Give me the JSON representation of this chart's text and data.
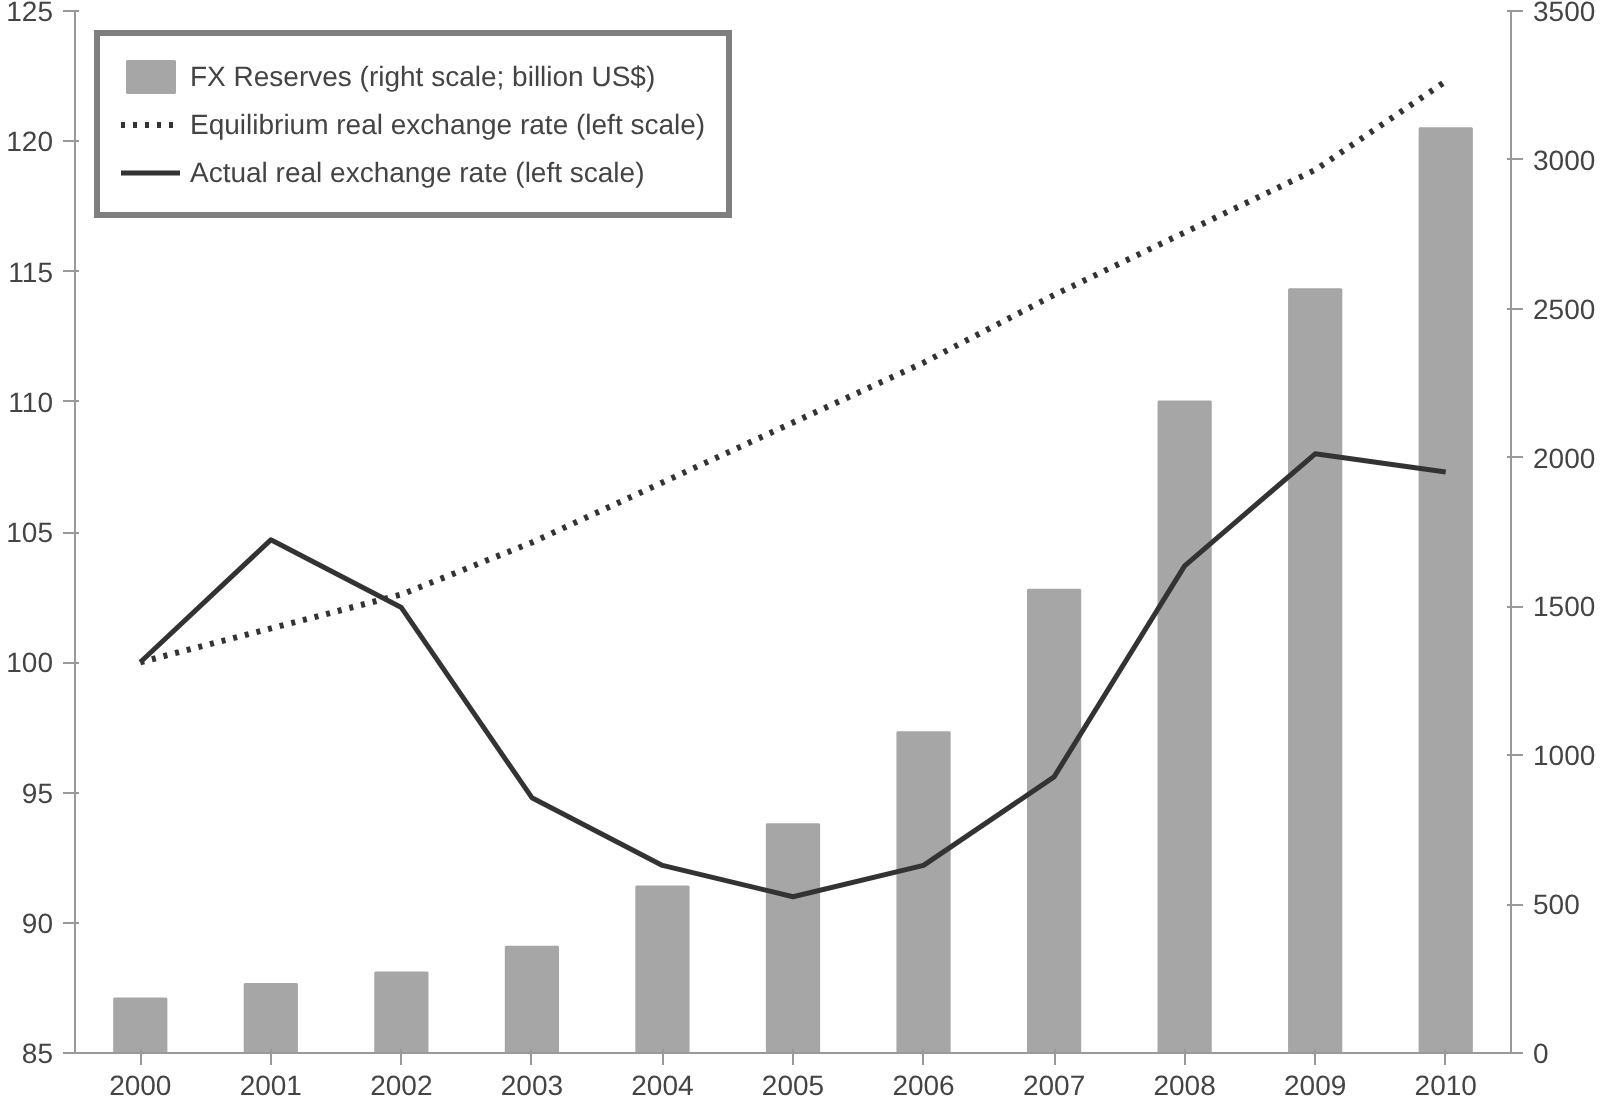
{
  "chart_data": {
    "type": "line",
    "categories": [
      "2000",
      "2001",
      "2002",
      "2003",
      "2004",
      "2005",
      "2006",
      "2007",
      "2008",
      "2009",
      "2010"
    ],
    "series": [
      {
        "name": "FX Reserves (right scale; billion US$)",
        "type": "bar",
        "axis": "y2",
        "color": "#a6a6a6",
        "values": [
          183,
          232,
          270,
          357,
          559,
          768,
          1077,
          1556,
          2188,
          2565,
          3106
        ]
      },
      {
        "name": "Equilibrium real exchange rate (left scale)",
        "line_style": "dotted",
        "color": "#333333",
        "values": [
          100,
          101.3,
          102.6,
          104.6,
          106.9,
          109.2,
          111.5,
          114.1,
          116.5,
          118.9,
          122.3
        ]
      },
      {
        "name": "Actual real exchange rate (left scale)",
        "line_style": "solid",
        "color": "#333333",
        "values": [
          100,
          104.7,
          102.1,
          94.8,
          92.2,
          91.0,
          92.2,
          95.6,
          103.7,
          108.0,
          107.3
        ]
      }
    ],
    "ylim": [
      85,
      125
    ],
    "yticks": [
      85,
      90,
      95,
      100,
      105,
      110,
      115,
      120,
      125
    ],
    "y2lim": [
      0,
      3500
    ],
    "y2ticks": [
      0,
      500,
      1000,
      1500,
      2000,
      2500,
      3000,
      3500
    ],
    "legend": "top left",
    "grid": false
  }
}
